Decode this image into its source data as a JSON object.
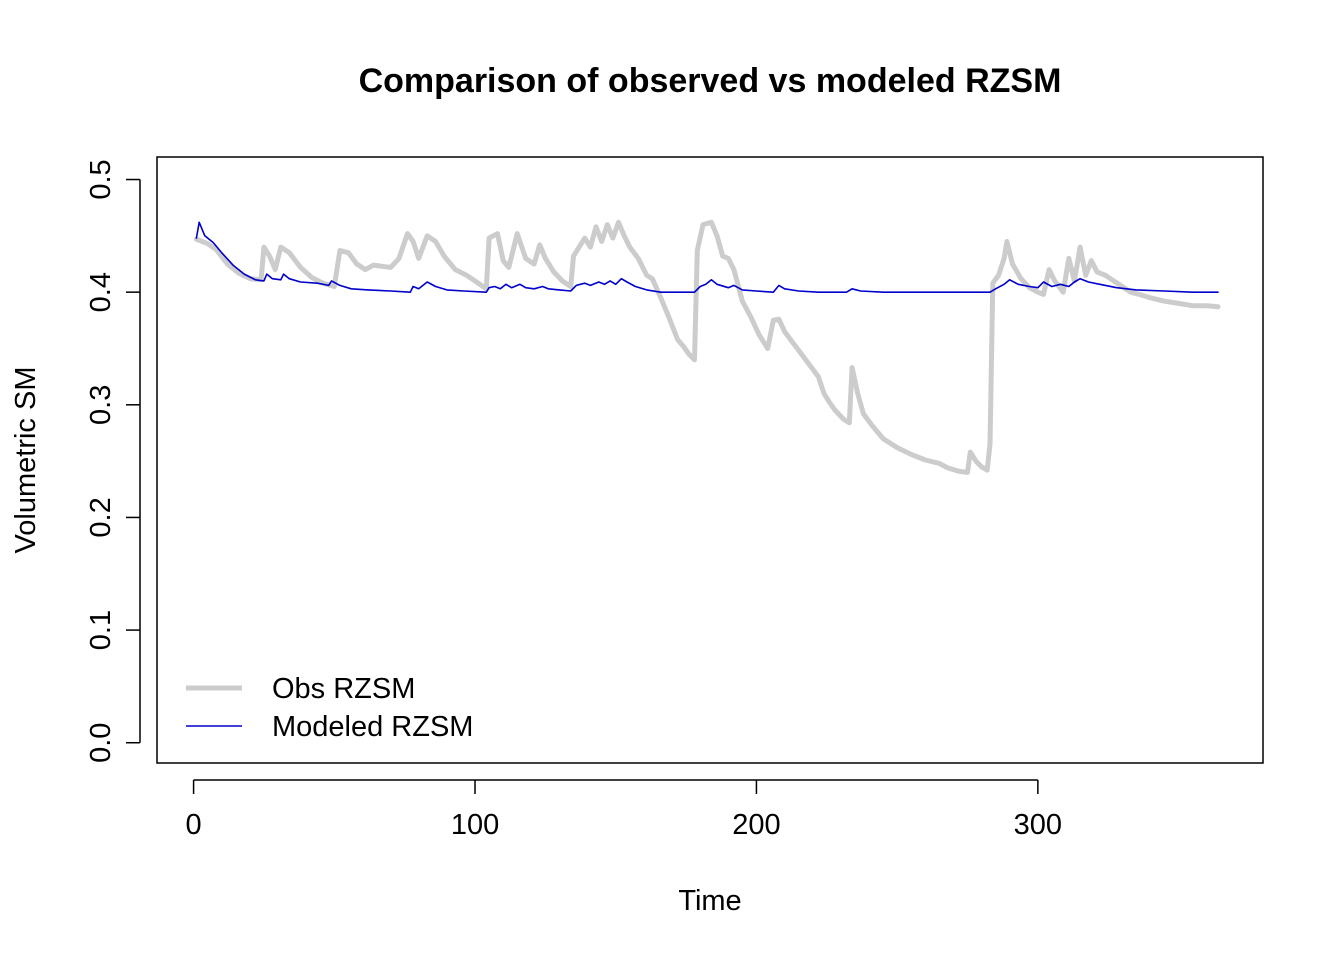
{
  "chart_data": {
    "type": "line",
    "title": "Comparison of observed vs modeled RZSM",
    "xlabel": "Time",
    "ylabel": "Volumetric SM",
    "xlim": [
      -13,
      380
    ],
    "ylim": [
      -0.018,
      0.52
    ],
    "x_ticks": [
      0,
      100,
      200,
      300
    ],
    "y_ticks": [
      0.0,
      0.1,
      0.2,
      0.3,
      0.4,
      0.5
    ],
    "x_tick_labels": [
      "0",
      "100",
      "200",
      "300"
    ],
    "y_tick_labels": [
      "0.0",
      "0.1",
      "0.2",
      "0.3",
      "0.4",
      "0.5"
    ],
    "grid": false,
    "legend_position": "bottom-left",
    "series": [
      {
        "name": "Obs RZSM",
        "color": "#cccccc",
        "points": [
          [
            1,
            0.447
          ],
          [
            5,
            0.443
          ],
          [
            8,
            0.438
          ],
          [
            12,
            0.425
          ],
          [
            16,
            0.417
          ],
          [
            20,
            0.412
          ],
          [
            24,
            0.411
          ],
          [
            25,
            0.44
          ],
          [
            27,
            0.432
          ],
          [
            29,
            0.42
          ],
          [
            31,
            0.44
          ],
          [
            34,
            0.435
          ],
          [
            38,
            0.422
          ],
          [
            42,
            0.413
          ],
          [
            46,
            0.408
          ],
          [
            50,
            0.405
          ],
          [
            52,
            0.437
          ],
          [
            55,
            0.435
          ],
          [
            58,
            0.425
          ],
          [
            61,
            0.42
          ],
          [
            64,
            0.424
          ],
          [
            67,
            0.423
          ],
          [
            70,
            0.422
          ],
          [
            73,
            0.43
          ],
          [
            76,
            0.452
          ],
          [
            78,
            0.445
          ],
          [
            80,
            0.43
          ],
          [
            83,
            0.45
          ],
          [
            86,
            0.445
          ],
          [
            89,
            0.432
          ],
          [
            93,
            0.42
          ],
          [
            97,
            0.415
          ],
          [
            100,
            0.41
          ],
          [
            104,
            0.403
          ],
          [
            105,
            0.448
          ],
          [
            108,
            0.452
          ],
          [
            110,
            0.428
          ],
          [
            112,
            0.422
          ],
          [
            115,
            0.452
          ],
          [
            118,
            0.43
          ],
          [
            121,
            0.425
          ],
          [
            123,
            0.442
          ],
          [
            125,
            0.43
          ],
          [
            128,
            0.418
          ],
          [
            131,
            0.41
          ],
          [
            134,
            0.405
          ],
          [
            135,
            0.432
          ],
          [
            137,
            0.44
          ],
          [
            139,
            0.448
          ],
          [
            141,
            0.44
          ],
          [
            143,
            0.458
          ],
          [
            145,
            0.445
          ],
          [
            147,
            0.46
          ],
          [
            149,
            0.448
          ],
          [
            151,
            0.462
          ],
          [
            153,
            0.45
          ],
          [
            155,
            0.44
          ],
          [
            158,
            0.43
          ],
          [
            161,
            0.415
          ],
          [
            163,
            0.412
          ],
          [
            166,
            0.395
          ],
          [
            169,
            0.377
          ],
          [
            172,
            0.358
          ],
          [
            174,
            0.352
          ],
          [
            176,
            0.345
          ],
          [
            178,
            0.34
          ],
          [
            179,
            0.437
          ],
          [
            181,
            0.46
          ],
          [
            184,
            0.462
          ],
          [
            186,
            0.45
          ],
          [
            188,
            0.432
          ],
          [
            190,
            0.43
          ],
          [
            192,
            0.42
          ],
          [
            195,
            0.392
          ],
          [
            198,
            0.378
          ],
          [
            201,
            0.362
          ],
          [
            204,
            0.35
          ],
          [
            206,
            0.375
          ],
          [
            208,
            0.376
          ],
          [
            210,
            0.365
          ],
          [
            213,
            0.355
          ],
          [
            216,
            0.345
          ],
          [
            219,
            0.335
          ],
          [
            222,
            0.325
          ],
          [
            224,
            0.31
          ],
          [
            226,
            0.302
          ],
          [
            228,
            0.295
          ],
          [
            231,
            0.287
          ],
          [
            233,
            0.284
          ],
          [
            234,
            0.333
          ],
          [
            236,
            0.31
          ],
          [
            238,
            0.292
          ],
          [
            241,
            0.282
          ],
          [
            245,
            0.27
          ],
          [
            250,
            0.262
          ],
          [
            255,
            0.256
          ],
          [
            260,
            0.251
          ],
          [
            265,
            0.248
          ],
          [
            268,
            0.244
          ],
          [
            272,
            0.241
          ],
          [
            275,
            0.24
          ],
          [
            276,
            0.258
          ],
          [
            278,
            0.25
          ],
          [
            280,
            0.245
          ],
          [
            282,
            0.242
          ],
          [
            283,
            0.265
          ],
          [
            284,
            0.408
          ],
          [
            286,
            0.415
          ],
          [
            288,
            0.43
          ],
          [
            289,
            0.445
          ],
          [
            291,
            0.425
          ],
          [
            294,
            0.412
          ],
          [
            297,
            0.404
          ],
          [
            300,
            0.4
          ],
          [
            302,
            0.398
          ],
          [
            304,
            0.42
          ],
          [
            306,
            0.41
          ],
          [
            309,
            0.4
          ],
          [
            311,
            0.43
          ],
          [
            313,
            0.41
          ],
          [
            315,
            0.44
          ],
          [
            317,
            0.415
          ],
          [
            319,
            0.428
          ],
          [
            321,
            0.418
          ],
          [
            324,
            0.415
          ],
          [
            327,
            0.41
          ],
          [
            330,
            0.405
          ],
          [
            333,
            0.4
          ],
          [
            336,
            0.398
          ],
          [
            340,
            0.395
          ],
          [
            345,
            0.392
          ],
          [
            350,
            0.39
          ],
          [
            355,
            0.388
          ],
          [
            360,
            0.388
          ],
          [
            364,
            0.387
          ]
        ]
      },
      {
        "name": "Modeled RZSM",
        "color": "#0000cc",
        "points": [
          [
            1,
            0.448
          ],
          [
            2,
            0.462
          ],
          [
            4,
            0.45
          ],
          [
            7,
            0.444
          ],
          [
            10,
            0.435
          ],
          [
            14,
            0.424
          ],
          [
            18,
            0.416
          ],
          [
            22,
            0.411
          ],
          [
            25,
            0.41
          ],
          [
            26,
            0.416
          ],
          [
            28,
            0.412
          ],
          [
            31,
            0.411
          ],
          [
            32,
            0.416
          ],
          [
            34,
            0.412
          ],
          [
            38,
            0.409
          ],
          [
            44,
            0.408
          ],
          [
            48,
            0.406
          ],
          [
            49,
            0.41
          ],
          [
            52,
            0.406
          ],
          [
            56,
            0.403
          ],
          [
            62,
            0.402
          ],
          [
            70,
            0.401
          ],
          [
            77,
            0.4
          ],
          [
            78,
            0.405
          ],
          [
            80,
            0.403
          ],
          [
            83,
            0.409
          ],
          [
            86,
            0.405
          ],
          [
            90,
            0.402
          ],
          [
            96,
            0.401
          ],
          [
            104,
            0.4
          ],
          [
            105,
            0.404
          ],
          [
            107,
            0.405
          ],
          [
            109,
            0.403
          ],
          [
            111,
            0.407
          ],
          [
            113,
            0.404
          ],
          [
            116,
            0.407
          ],
          [
            118,
            0.404
          ],
          [
            121,
            0.403
          ],
          [
            124,
            0.405
          ],
          [
            126,
            0.403
          ],
          [
            130,
            0.402
          ],
          [
            134,
            0.401
          ],
          [
            136,
            0.406
          ],
          [
            139,
            0.408
          ],
          [
            141,
            0.406
          ],
          [
            144,
            0.409
          ],
          [
            146,
            0.407
          ],
          [
            148,
            0.41
          ],
          [
            150,
            0.407
          ],
          [
            152,
            0.412
          ],
          [
            154,
            0.409
          ],
          [
            157,
            0.405
          ],
          [
            161,
            0.402
          ],
          [
            166,
            0.4
          ],
          [
            172,
            0.4
          ],
          [
            178,
            0.4
          ],
          [
            180,
            0.405
          ],
          [
            182,
            0.407
          ],
          [
            184,
            0.411
          ],
          [
            186,
            0.407
          ],
          [
            190,
            0.404
          ],
          [
            192,
            0.406
          ],
          [
            195,
            0.402
          ],
          [
            200,
            0.401
          ],
          [
            206,
            0.4
          ],
          [
            208,
            0.406
          ],
          [
            210,
            0.403
          ],
          [
            215,
            0.401
          ],
          [
            222,
            0.4
          ],
          [
            232,
            0.4
          ],
          [
            234,
            0.403
          ],
          [
            237,
            0.401
          ],
          [
            245,
            0.4
          ],
          [
            260,
            0.4
          ],
          [
            275,
            0.4
          ],
          [
            283,
            0.4
          ],
          [
            285,
            0.403
          ],
          [
            288,
            0.407
          ],
          [
            290,
            0.411
          ],
          [
            293,
            0.407
          ],
          [
            297,
            0.405
          ],
          [
            300,
            0.404
          ],
          [
            302,
            0.409
          ],
          [
            305,
            0.405
          ],
          [
            308,
            0.407
          ],
          [
            311,
            0.405
          ],
          [
            313,
            0.409
          ],
          [
            315,
            0.412
          ],
          [
            318,
            0.409
          ],
          [
            322,
            0.407
          ],
          [
            328,
            0.404
          ],
          [
            335,
            0.402
          ],
          [
            345,
            0.401
          ],
          [
            355,
            0.4
          ],
          [
            364,
            0.4
          ]
        ]
      }
    ]
  }
}
